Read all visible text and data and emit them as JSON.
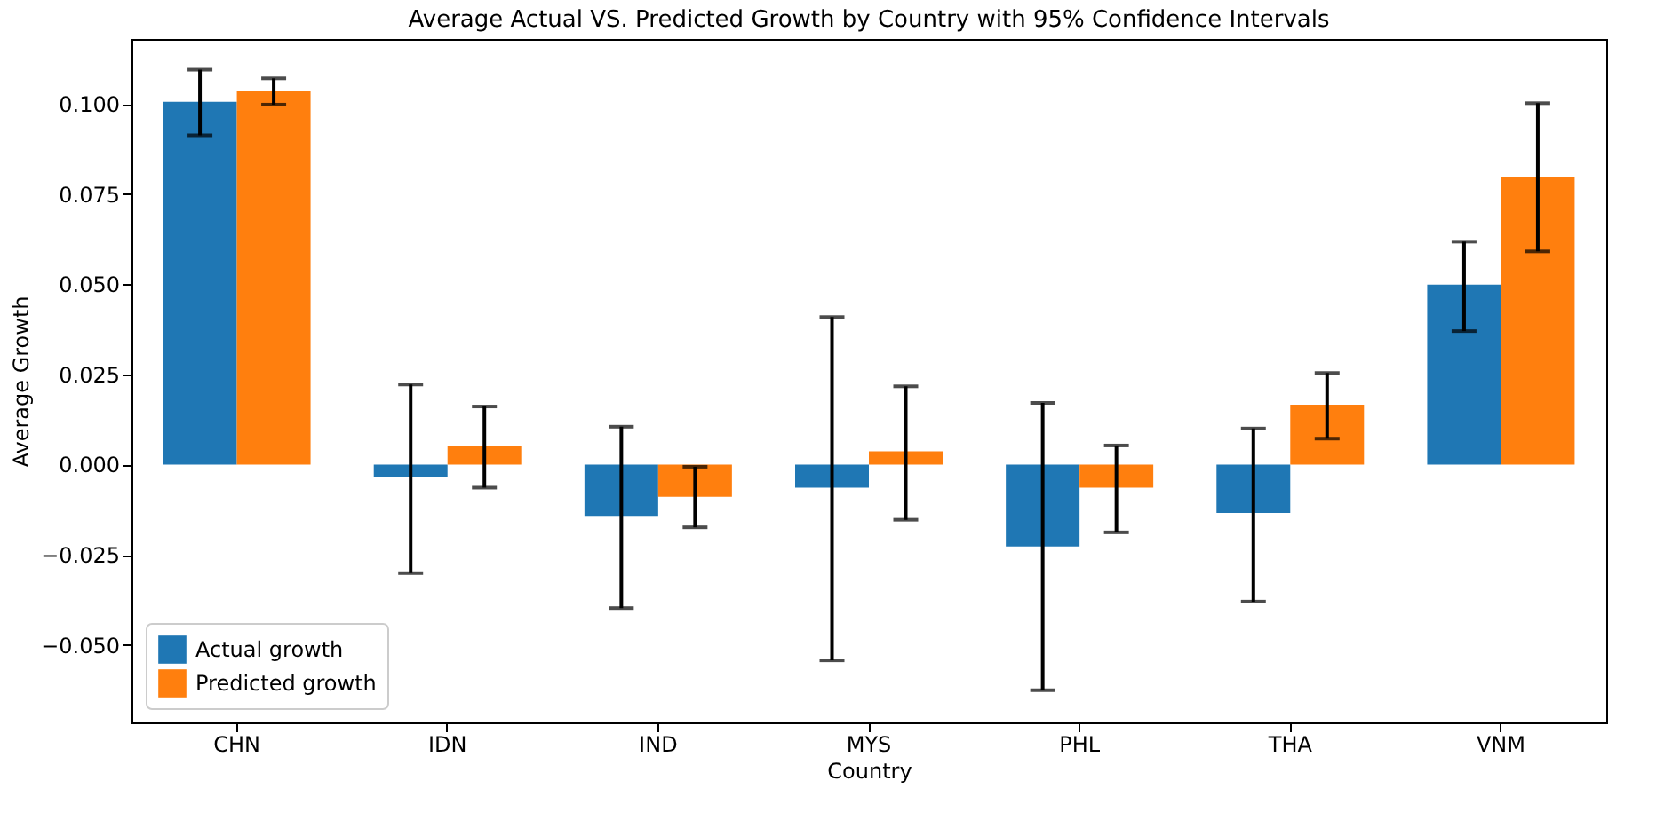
{
  "chart_data": {
    "type": "bar",
    "title": "Average Actual VS. Predicted Growth by Country with 95% Confidence Intervals",
    "xlabel": "Country",
    "ylabel": "Average Growth",
    "categories": [
      "CHN",
      "IDN",
      "IND",
      "MYS",
      "PHL",
      "THA",
      "VNM"
    ],
    "series": [
      {
        "name": "Actual growth",
        "color": "#1f77b4",
        "values": [
          0.1006,
          -0.0035,
          -0.0142,
          -0.0064,
          -0.0227,
          -0.0134,
          0.0499
        ],
        "errors": [
          [
            0.0913,
            0.1095
          ],
          [
            -0.0301,
            0.0222
          ],
          [
            -0.0398,
            0.0105
          ],
          [
            -0.0543,
            0.0409
          ],
          [
            -0.0626,
            0.0171
          ],
          [
            -0.038,
            0.01
          ],
          [
            0.037,
            0.0618
          ]
        ]
      },
      {
        "name": "Predicted growth",
        "color": "#ff7f0e",
        "values": [
          0.1035,
          0.0052,
          -0.0089,
          0.0037,
          -0.0064,
          0.0166,
          0.0797
        ],
        "errors": [
          [
            0.0998,
            0.1071
          ],
          [
            -0.0064,
            0.0161
          ],
          [
            -0.0174,
            -0.0006
          ],
          [
            -0.0153,
            0.0217
          ],
          [
            -0.0188,
            0.0053
          ],
          [
            0.0072,
            0.0254
          ],
          [
            0.0591,
            0.1002
          ]
        ]
      }
    ],
    "ylim": [
      -0.0715,
      0.118
    ],
    "yticks": [
      {
        "value": -0.05,
        "label": "−0.050"
      },
      {
        "value": -0.025,
        "label": "−0.025"
      },
      {
        "value": 0,
        "label": "0.000"
      },
      {
        "value": 0.025,
        "label": "0.025"
      },
      {
        "value": 0.05,
        "label": "0.050"
      },
      {
        "value": 0.075,
        "label": "0.075"
      },
      {
        "value": 0.1,
        "label": "0.100"
      }
    ],
    "grid": false,
    "legend": "bottom left"
  }
}
